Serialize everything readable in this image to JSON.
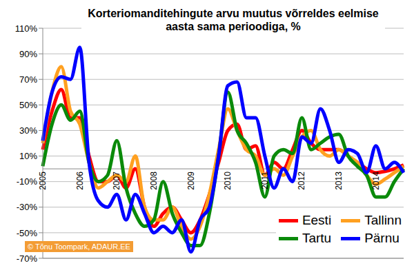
{
  "chart_data": {
    "type": "line",
    "title": "Korteriomanditehingute arvu muutus võrreldes eelmise aasta sama perioodiga, %",
    "annotation": "© Tõnu Toompark, ADAUR.EE",
    "categories": [
      "2005",
      null,
      null,
      null,
      "2006",
      null,
      null,
      null,
      "2007",
      null,
      null,
      null,
      "2008",
      null,
      null,
      null,
      "2009",
      null,
      null,
      null,
      "2010",
      null,
      null,
      null,
      "2011",
      null,
      null,
      null,
      "2012",
      null,
      null,
      null,
      "2013",
      null,
      null,
      null,
      "2014",
      null,
      null,
      null
    ],
    "series": [
      {
        "name": "Eesti",
        "color": "#ff0000",
        "values": [
          15,
          45,
          62,
          40,
          40,
          10,
          -10,
          -10,
          -5,
          -15,
          0,
          -30,
          -45,
          -35,
          -30,
          -40,
          -50,
          -40,
          -20,
          5,
          30,
          35,
          15,
          18,
          -5,
          5,
          0,
          15,
          30,
          20,
          15,
          15,
          15,
          10,
          5,
          0,
          -3,
          -2,
          0,
          3
        ]
      },
      {
        "name": "Tallinn",
        "color": "#ffa020",
        "values": [
          20,
          60,
          80,
          45,
          35,
          5,
          -15,
          -10,
          -5,
          -10,
          10,
          -30,
          -40,
          -40,
          -30,
          -45,
          -55,
          -45,
          -20,
          15,
          47,
          30,
          15,
          10,
          -5,
          0,
          -5,
          10,
          25,
          30,
          15,
          10,
          15,
          10,
          5,
          -5,
          -12,
          -8,
          -3,
          2
        ]
      },
      {
        "name": "Tartu",
        "color": "#0a8a0a",
        "values": [
          2,
          35,
          50,
          38,
          45,
          5,
          -10,
          -5,
          22,
          -15,
          -35,
          -45,
          -40,
          -10,
          -35,
          -50,
          -60,
          -60,
          -35,
          10,
          60,
          30,
          20,
          5,
          -22,
          10,
          15,
          12,
          40,
          15,
          20,
          25,
          27,
          10,
          2,
          -5,
          -22,
          -22,
          -10,
          0
        ]
      },
      {
        "name": "Pärnu",
        "color": "#0000ff",
        "values": [
          22,
          60,
          72,
          70,
          95,
          5,
          -25,
          -30,
          -20,
          -40,
          -20,
          -35,
          -50,
          -45,
          -50,
          -40,
          -65,
          -40,
          -30,
          10,
          65,
          68,
          40,
          40,
          10,
          -15,
          0,
          -10,
          25,
          20,
          47,
          30,
          5,
          15,
          12,
          -3,
          18,
          0,
          5,
          -3
        ]
      }
    ],
    "ylim": [
      -70,
      110
    ],
    "yticks": [
      {
        "value": -70,
        "label": "-70%"
      },
      {
        "value": -50,
        "label": "-50%"
      },
      {
        "value": -30,
        "label": "-30%"
      },
      {
        "value": -10,
        "label": "-10%"
      },
      {
        "value": 10,
        "label": "10%"
      },
      {
        "value": 30,
        "label": "30%"
      },
      {
        "value": 50,
        "label": "50%"
      },
      {
        "value": 70,
        "label": "70%"
      },
      {
        "value": 90,
        "label": "90%"
      },
      {
        "value": 110,
        "label": "110%"
      }
    ],
    "grid": true,
    "legend": "lower right",
    "marker": "none",
    "line_style": "solid"
  }
}
